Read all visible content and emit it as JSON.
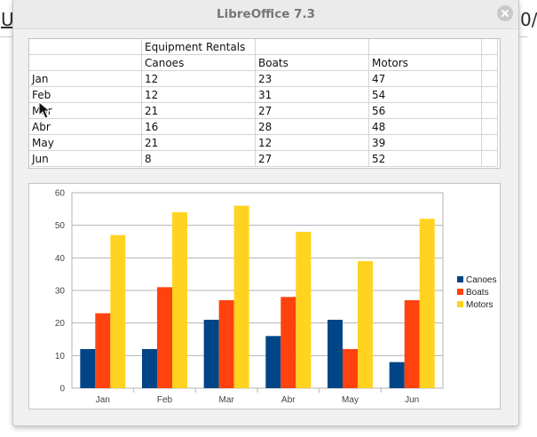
{
  "background": {
    "left_glyph": "U",
    "right_glyph": "0/"
  },
  "window": {
    "title": "LibreOffice 7.3",
    "close_icon": "close-icon"
  },
  "table": {
    "header_group": "Equipment Rentals",
    "columns": [
      "",
      "Canoes",
      "Boats",
      "Motors"
    ],
    "rows": [
      {
        "label": "Jan",
        "values": [
          "12",
          "23",
          "47"
        ]
      },
      {
        "label": "Feb",
        "values": [
          "12",
          "31",
          "54"
        ]
      },
      {
        "label": "Mar",
        "values": [
          "21",
          "27",
          "56"
        ]
      },
      {
        "label": "Abr",
        "values": [
          "16",
          "28",
          "48"
        ]
      },
      {
        "label": "May",
        "values": [
          "21",
          "12",
          "39"
        ]
      },
      {
        "label": "Jun",
        "values": [
          "8",
          "27",
          "52"
        ]
      }
    ]
  },
  "chart_data": {
    "type": "bar",
    "categories": [
      "Jan",
      "Feb",
      "Mar",
      "Abr",
      "May",
      "Jun"
    ],
    "series": [
      {
        "name": "Canoes",
        "values": [
          12,
          12,
          21,
          16,
          21,
          8
        ],
        "color": "#004586"
      },
      {
        "name": "Boats",
        "values": [
          23,
          31,
          27,
          28,
          12,
          27
        ],
        "color": "#ff420e"
      },
      {
        "name": "Motors",
        "values": [
          47,
          54,
          56,
          48,
          39,
          52
        ],
        "color": "#ffd320"
      }
    ],
    "yticks": [
      0,
      10,
      20,
      30,
      40,
      50,
      60
    ],
    "ylim": [
      0,
      60
    ],
    "grid": true,
    "legend": "right"
  }
}
